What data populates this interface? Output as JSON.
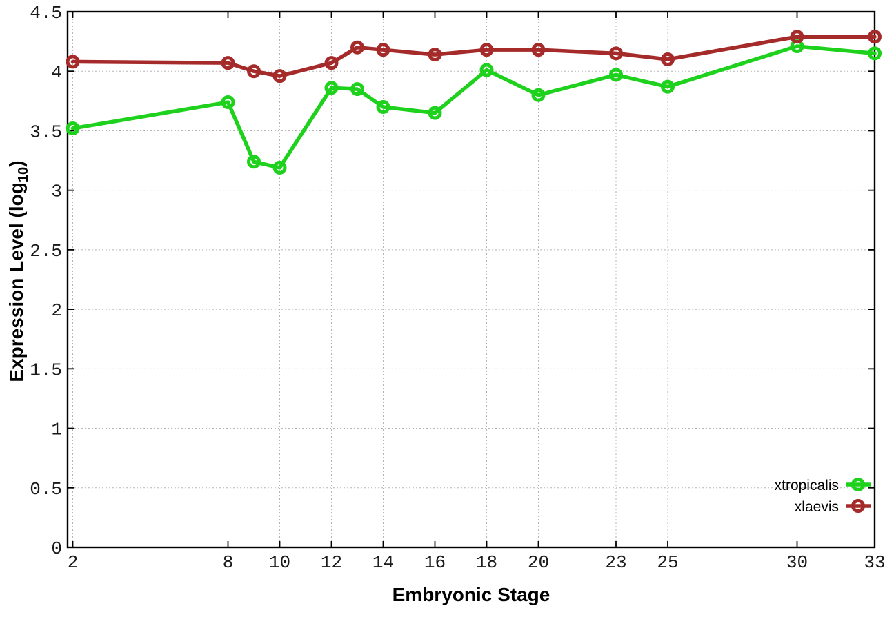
{
  "figure": {
    "background": "#ffffff",
    "border_color": "#000000",
    "grid_color": "#b5b5b5"
  },
  "chart_data": {
    "type": "line",
    "title": "",
    "xlabel": "Embryonic Stage",
    "ylabel": "Expression Level (log10)",
    "ylabel_parts": {
      "main": "Expression Level (log",
      "sub": "10",
      "end": ")"
    },
    "xlim": [
      1.8,
      33
    ],
    "ylim": [
      0,
      4.5
    ],
    "x_ticks": [
      2,
      8,
      10,
      12,
      14,
      16,
      18,
      20,
      23,
      25,
      30,
      33
    ],
    "y_ticks": [
      0,
      0.5,
      1,
      1.5,
      2,
      2.5,
      3,
      3.5,
      4,
      4.5
    ],
    "grid": true,
    "legend_position": "bottom-right",
    "x": [
      2,
      8,
      9,
      10,
      12,
      13,
      14,
      16,
      18,
      20,
      23,
      25,
      30,
      33
    ],
    "series": [
      {
        "name": "xtropicalis",
        "color": "#1dd11d",
        "values": [
          3.52,
          3.74,
          3.24,
          3.19,
          3.86,
          3.85,
          3.7,
          3.65,
          4.01,
          3.8,
          3.97,
          3.87,
          4.21,
          4.15
        ]
      },
      {
        "name": "xlaevis",
        "color": "#a52a2a",
        "values": [
          4.08,
          4.07,
          4.0,
          3.96,
          4.07,
          4.2,
          4.18,
          4.14,
          4.18,
          4.18,
          4.15,
          4.1,
          4.29,
          4.29
        ]
      }
    ]
  }
}
